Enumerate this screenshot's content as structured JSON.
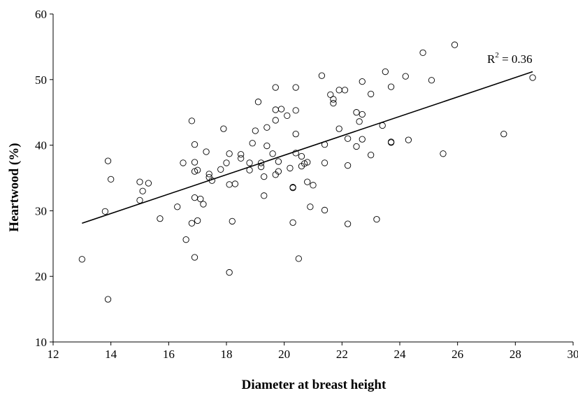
{
  "chart_data": {
    "type": "scatter",
    "title": "",
    "xlabel": "Diameter at breast height",
    "ylabel": "Heartwood (%)",
    "xlim": [
      12,
      30
    ],
    "ylim": [
      10,
      60
    ],
    "xticks": [
      12,
      14,
      16,
      18,
      20,
      22,
      24,
      26,
      28,
      30
    ],
    "yticks": [
      10,
      20,
      30,
      40,
      50,
      60
    ],
    "grid": false,
    "legend": "none",
    "marker": "open-circle",
    "annotation": {
      "base": "R",
      "sup": "2",
      "rest": " = 0.36"
    },
    "trendline": {
      "x": [
        13.0,
        28.6
      ],
      "y": [
        28.1,
        51.2
      ]
    },
    "points": [
      [
        13.0,
        22.6
      ],
      [
        13.8,
        29.9
      ],
      [
        13.9,
        16.5
      ],
      [
        13.9,
        37.6
      ],
      [
        14.0,
        34.8
      ],
      [
        15.0,
        31.6
      ],
      [
        15.0,
        34.4
      ],
      [
        15.1,
        33.0
      ],
      [
        15.3,
        34.2
      ],
      [
        15.7,
        28.8
      ],
      [
        16.3,
        30.6
      ],
      [
        16.5,
        37.3
      ],
      [
        16.6,
        25.6
      ],
      [
        16.8,
        43.7
      ],
      [
        16.8,
        28.1
      ],
      [
        16.9,
        40.1
      ],
      [
        16.9,
        37.4
      ],
      [
        16.9,
        36.0
      ],
      [
        16.9,
        32.0
      ],
      [
        16.9,
        22.9
      ],
      [
        17.0,
        36.2
      ],
      [
        17.0,
        28.5
      ],
      [
        17.1,
        31.8
      ],
      [
        17.2,
        31.0
      ],
      [
        17.3,
        39.0
      ],
      [
        17.4,
        35.6
      ],
      [
        17.4,
        35.1
      ],
      [
        17.5,
        34.6
      ],
      [
        17.8,
        36.3
      ],
      [
        17.9,
        42.5
      ],
      [
        18.0,
        37.3
      ],
      [
        18.1,
        38.7
      ],
      [
        18.1,
        34.0
      ],
      [
        18.1,
        20.6
      ],
      [
        18.2,
        28.4
      ],
      [
        18.3,
        34.1
      ],
      [
        18.5,
        38.0
      ],
      [
        18.5,
        38.6
      ],
      [
        18.8,
        37.3
      ],
      [
        18.8,
        36.2
      ],
      [
        18.9,
        40.3
      ],
      [
        19.0,
        42.2
      ],
      [
        19.1,
        46.6
      ],
      [
        19.2,
        37.3
      ],
      [
        19.2,
        36.7
      ],
      [
        19.3,
        35.2
      ],
      [
        19.3,
        32.3
      ],
      [
        19.4,
        42.7
      ],
      [
        19.4,
        39.9
      ],
      [
        19.6,
        38.7
      ],
      [
        19.7,
        48.8
      ],
      [
        19.7,
        45.4
      ],
      [
        19.7,
        43.8
      ],
      [
        19.7,
        35.5
      ],
      [
        19.8,
        36.0
      ],
      [
        19.8,
        37.5
      ],
      [
        19.9,
        45.5
      ],
      [
        20.1,
        44.5
      ],
      [
        20.2,
        36.5
      ],
      [
        20.3,
        33.6
      ],
      [
        20.3,
        33.5
      ],
      [
        20.3,
        28.2
      ],
      [
        20.4,
        48.8
      ],
      [
        20.4,
        45.3
      ],
      [
        20.4,
        41.7
      ],
      [
        20.4,
        38.8
      ],
      [
        20.5,
        22.7
      ],
      [
        20.6,
        38.3
      ],
      [
        20.6,
        36.8
      ],
      [
        20.7,
        37.2
      ],
      [
        20.8,
        37.4
      ],
      [
        20.8,
        34.4
      ],
      [
        20.9,
        30.6
      ],
      [
        21.0,
        33.9
      ],
      [
        21.3,
        50.6
      ],
      [
        21.4,
        40.1
      ],
      [
        21.4,
        37.3
      ],
      [
        21.4,
        30.1
      ],
      [
        21.6,
        47.7
      ],
      [
        21.7,
        47.0
      ],
      [
        21.7,
        46.4
      ],
      [
        21.9,
        48.4
      ],
      [
        21.9,
        42.5
      ],
      [
        22.1,
        48.4
      ],
      [
        22.2,
        41.0
      ],
      [
        22.2,
        36.9
      ],
      [
        22.2,
        28.0
      ],
      [
        22.5,
        45.0
      ],
      [
        22.5,
        39.8
      ],
      [
        22.6,
        43.6
      ],
      [
        22.7,
        49.7
      ],
      [
        22.7,
        44.7
      ],
      [
        22.7,
        40.9
      ],
      [
        23.0,
        47.8
      ],
      [
        23.0,
        38.5
      ],
      [
        23.2,
        28.7
      ],
      [
        23.4,
        43.0
      ],
      [
        23.5,
        51.2
      ],
      [
        23.7,
        48.9
      ],
      [
        23.7,
        40.5
      ],
      [
        23.7,
        40.4
      ],
      [
        24.2,
        50.5
      ],
      [
        24.3,
        40.8
      ],
      [
        24.8,
        54.1
      ],
      [
        25.1,
        49.9
      ],
      [
        25.5,
        38.7
      ],
      [
        25.9,
        55.3
      ],
      [
        27.6,
        41.7
      ],
      [
        28.6,
        50.3
      ]
    ]
  }
}
